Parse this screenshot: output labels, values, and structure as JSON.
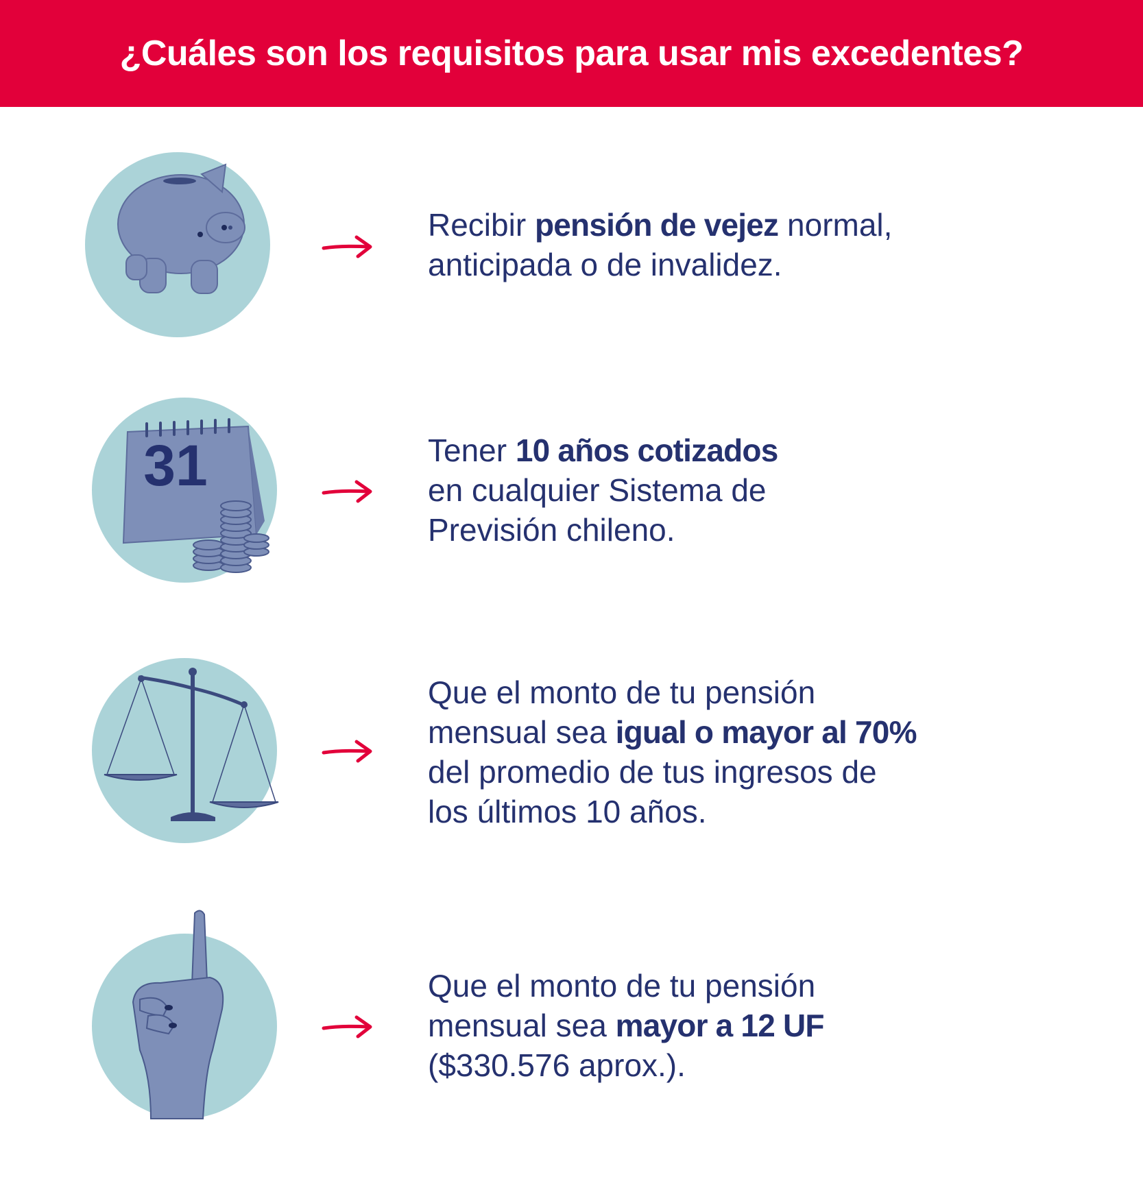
{
  "header": {
    "title": "¿Cuáles son los requisitos para usar mis excedentes?"
  },
  "colors": {
    "accent": "#e2003a",
    "text": "#25316f",
    "circle": "#abd3d8"
  },
  "items": [
    {
      "icon": "piggy-bank-icon",
      "lines": [
        {
          "pre": "Recibir ",
          "bold": "pensión de vejez",
          "post": " normal,"
        },
        {
          "pre": "anticipada o de invalidez.",
          "bold": "",
          "post": ""
        }
      ]
    },
    {
      "icon": "calendar-coins-icon",
      "calendar_number": "31",
      "lines": [
        {
          "pre": "Tener ",
          "bold": "10 años cotizados",
          "post": ""
        },
        {
          "pre": "en cualquier Sistema de",
          "bold": "",
          "post": ""
        },
        {
          "pre": "Previsión chileno.",
          "bold": "",
          "post": ""
        }
      ]
    },
    {
      "icon": "balance-scale-icon",
      "lines": [
        {
          "pre": "Que el monto de tu pensión",
          "bold": "",
          "post": ""
        },
        {
          "pre": "mensual sea ",
          "bold": "igual o mayor al 70%",
          "post": ""
        },
        {
          "pre": "del promedio de tus ingresos de",
          "bold": "",
          "post": ""
        },
        {
          "pre": "los últimos 10 años.",
          "bold": "",
          "post": ""
        }
      ]
    },
    {
      "icon": "raised-finger-icon",
      "lines": [
        {
          "pre": "Que el monto de tu pensión",
          "bold": "",
          "post": ""
        },
        {
          "pre": "mensual sea ",
          "bold": "mayor a 12 UF",
          "post": ""
        },
        {
          "pre": "($330.576 aprox.).",
          "bold": "",
          "post": ""
        }
      ]
    }
  ]
}
